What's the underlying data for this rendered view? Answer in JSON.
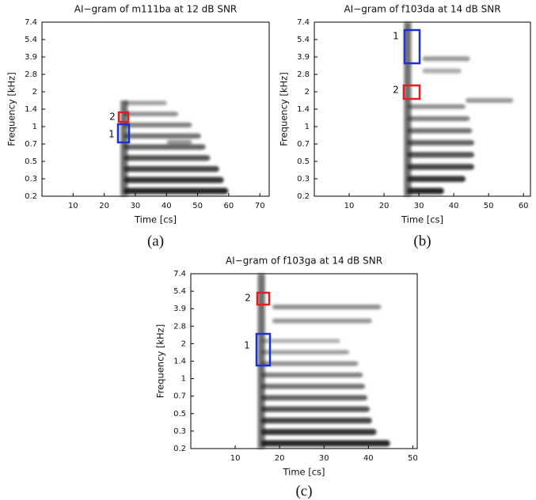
{
  "chart_data": [
    {
      "type": "spectrogram",
      "title": "AI−gram of m111ba at 12 dB SNR",
      "xlabel": "Time [cs]",
      "ylabel": "Frequency [kHz]",
      "panel_label": "(a)",
      "xlim": [
        0,
        73
      ],
      "xticks": [
        10,
        20,
        30,
        40,
        50,
        60,
        70
      ],
      "yticks": [
        0.2,
        0.3,
        0.5,
        0.7,
        1,
        1.4,
        2,
        2.8,
        3.9,
        5.4,
        7.4
      ],
      "annotations": [
        {
          "label": "2",
          "color": "#e02020"
        },
        {
          "label": "1",
          "color": "#2030d0"
        }
      ]
    },
    {
      "type": "spectrogram",
      "title": "AI−gram of f103da at 14 dB SNR",
      "xlabel": "Time [cs]",
      "ylabel": "Frequency [kHz]",
      "panel_label": "(b)",
      "xlim": [
        0,
        62
      ],
      "xticks": [
        10,
        20,
        30,
        40,
        50,
        60
      ],
      "yticks": [
        0.2,
        0.3,
        0.5,
        0.7,
        1,
        1.4,
        2,
        2.8,
        3.9,
        5.4,
        7.4
      ],
      "annotations": [
        {
          "label": "1",
          "color": "#2030d0"
        },
        {
          "label": "2",
          "color": "#e02020"
        }
      ]
    },
    {
      "type": "spectrogram",
      "title": "AI−gram of f103ga at 14 dB SNR",
      "xlabel": "Time [cs]",
      "ylabel": "Frequency [kHz]",
      "panel_label": "(c)",
      "xlim": [
        0,
        51
      ],
      "xticks": [
        10,
        20,
        30,
        40,
        50
      ],
      "yticks": [
        0.2,
        0.3,
        0.5,
        0.7,
        1,
        1.4,
        2,
        2.8,
        3.9,
        5.4,
        7.4
      ],
      "annotations": [
        {
          "label": "2",
          "color": "#e02020"
        },
        {
          "label": "1",
          "color": "#2030d0"
        }
      ]
    }
  ]
}
